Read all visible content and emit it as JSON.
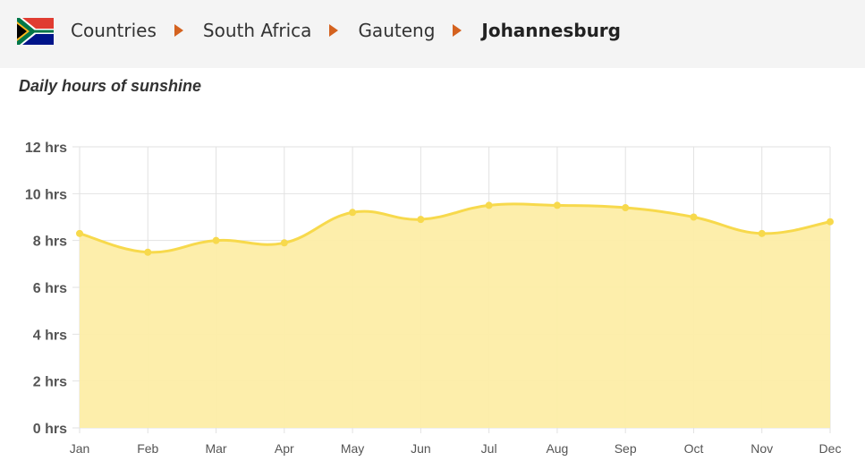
{
  "breadcrumb": {
    "items": [
      "Countries",
      "South Africa",
      "Gauteng"
    ],
    "current": "Johannesburg"
  },
  "colors": {
    "separator": "#d4621f",
    "line": "#f7d94c",
    "fill": "#fdeda6",
    "point": "#f7d94c",
    "grid": "#e2e2e2"
  },
  "chart_data": {
    "type": "area",
    "title": "Daily hours of sunshine",
    "xlabel": "",
    "ylabel": "",
    "categories": [
      "Jan",
      "Feb",
      "Mar",
      "Apr",
      "May",
      "Jun",
      "Jul",
      "Aug",
      "Sep",
      "Oct",
      "Nov",
      "Dec"
    ],
    "values": [
      8.3,
      7.5,
      8.0,
      7.9,
      9.2,
      8.9,
      9.5,
      9.5,
      9.4,
      9.0,
      8.3,
      8.8
    ],
    "ylim": [
      0,
      12
    ],
    "yticks": [
      0,
      2,
      4,
      6,
      8,
      10,
      12
    ],
    "ytick_labels": [
      "0 hrs",
      "2 hrs",
      "4 hrs",
      "6 hrs",
      "8 hrs",
      "10 hrs",
      "12 hrs"
    ],
    "grid": true,
    "legend": "none"
  }
}
